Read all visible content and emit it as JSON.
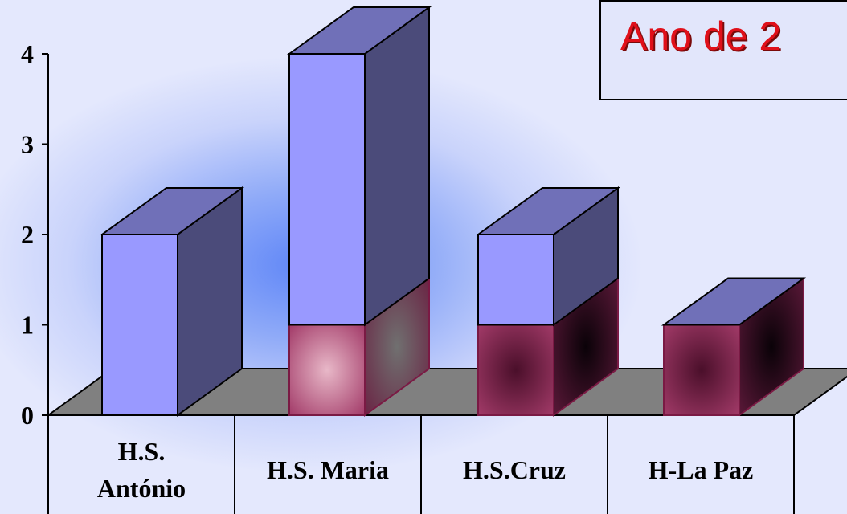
{
  "chart_data": {
    "type": "bar",
    "stacked": true,
    "three_d": true,
    "title": "Ano de 2",
    "categories": [
      "H.S. António",
      "H.S. Maria",
      "H.S.Cruz",
      "H-La Paz"
    ],
    "category_label_lines": [
      [
        "H.S.",
        "António"
      ],
      [
        "H.S. Maria"
      ],
      [
        "H.S.Cruz"
      ],
      [
        "H-La Paz"
      ]
    ],
    "series": [
      {
        "values": [
          0,
          1,
          1,
          1
        ],
        "color": "#9a3461"
      },
      {
        "values": [
          2,
          3,
          1,
          0
        ],
        "color": "#9999ff"
      }
    ],
    "ylim": [
      0,
      4
    ],
    "yticks": [
      0,
      1,
      2,
      3,
      4
    ],
    "grid": false,
    "legend": "none",
    "floor_color": "#808080",
    "side_shade": "#4b4b7a",
    "top_shade": "#7070b8"
  }
}
